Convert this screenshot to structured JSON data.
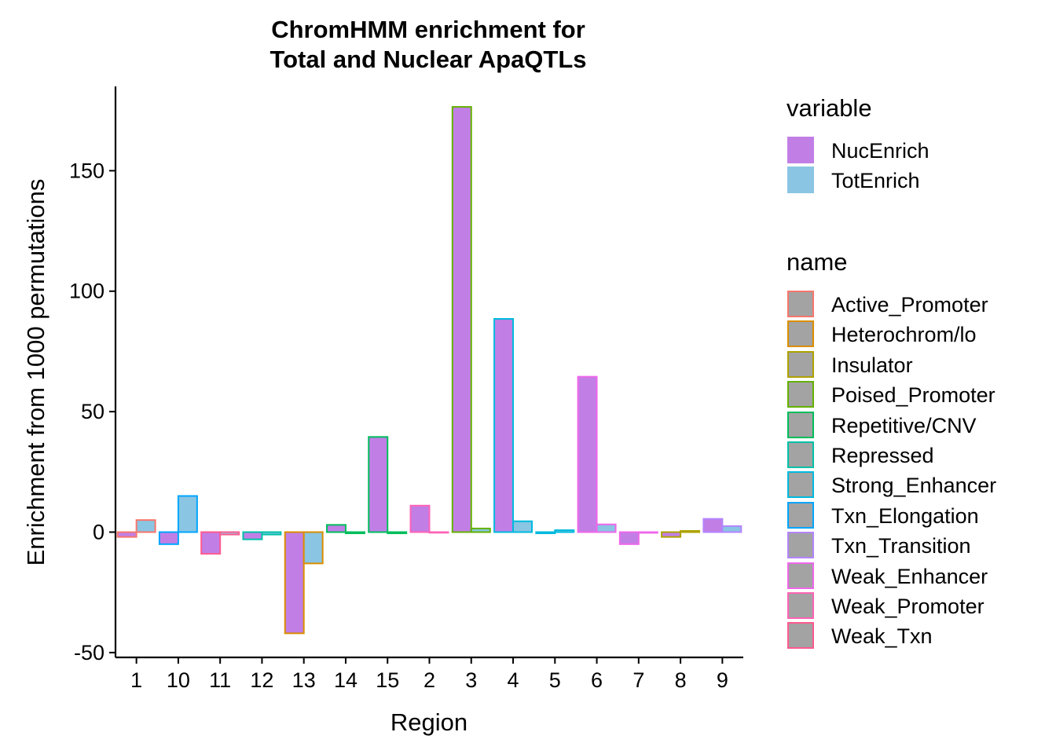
{
  "chart_data": {
    "type": "bar",
    "title_line1": "ChromHMM enrichment for",
    "title_line2": "Total and Nuclear ApaQTLs",
    "xlabel": "Region",
    "ylabel": "Enrichment from 1000 permutations",
    "ylim": [
      -52,
      185
    ],
    "yticks": [
      -50,
      0,
      50,
      100,
      150
    ],
    "ytick_labels": [
      "-50",
      "0",
      "50",
      "100",
      "150"
    ],
    "grid": false,
    "legend_position": "right",
    "categories": [
      "1",
      "10",
      "11",
      "12",
      "13",
      "14",
      "15",
      "2",
      "3",
      "4",
      "5",
      "6",
      "7",
      "8",
      "9"
    ],
    "category_names": [
      "Active_Promoter",
      "Txn_Elongation",
      "Weak_Txn",
      "Repressed",
      "Heterochrom/lo",
      "Repetitive/CNV",
      "Repetitive/CNV",
      "Weak_Promoter",
      "Poised_Promoter",
      "Strong_Enhancer",
      "Strong_Enhancer",
      "Weak_Enhancer",
      "Weak_Enhancer",
      "Insulator",
      "Txn_Transition"
    ],
    "series": [
      {
        "name": "NucEnrich",
        "color": "#C17FE6",
        "values": [
          -2,
          -5,
          -9,
          -3,
          -42,
          3,
          39.5,
          11,
          176.5,
          88.5,
          -0.5,
          64.5,
          -5,
          -2,
          5.5
        ]
      },
      {
        "name": "TotEnrich",
        "color": "#8AC5E3",
        "values": [
          5,
          15,
          -1,
          -1,
          -13,
          -0.5,
          -0.5,
          -0.2,
          1.5,
          4.5,
          0.8,
          3.2,
          -0.3,
          0.5,
          2.5
        ]
      }
    ]
  },
  "legend": {
    "variable_title": "variable",
    "variable_items": [
      {
        "label": "NucEnrich",
        "color": "#C17FE6"
      },
      {
        "label": "TotEnrich",
        "color": "#8AC5E3"
      }
    ],
    "name_title": "name",
    "name_fill": "#A3A3A3",
    "name_items": [
      {
        "label": "Active_Promoter",
        "color": "#F8766D"
      },
      {
        "label": "Heterochrom/lo",
        "color": "#DB8E00"
      },
      {
        "label": "Insulator",
        "color": "#AEA200"
      },
      {
        "label": "Poised_Promoter",
        "color": "#64B200"
      },
      {
        "label": "Repetitive/CNV",
        "color": "#00BD5C"
      },
      {
        "label": "Repressed",
        "color": "#00C1A7"
      },
      {
        "label": "Strong_Enhancer",
        "color": "#00BADE"
      },
      {
        "label": "Txn_Elongation",
        "color": "#00A6FF"
      },
      {
        "label": "Txn_Transition",
        "color": "#B385FF"
      },
      {
        "label": "Weak_Enhancer",
        "color": "#EF67EB"
      },
      {
        "label": "Weak_Promoter",
        "color": "#FF63B6"
      },
      {
        "label": "Weak_Txn",
        "color": "#FF5A8F"
      }
    ]
  }
}
